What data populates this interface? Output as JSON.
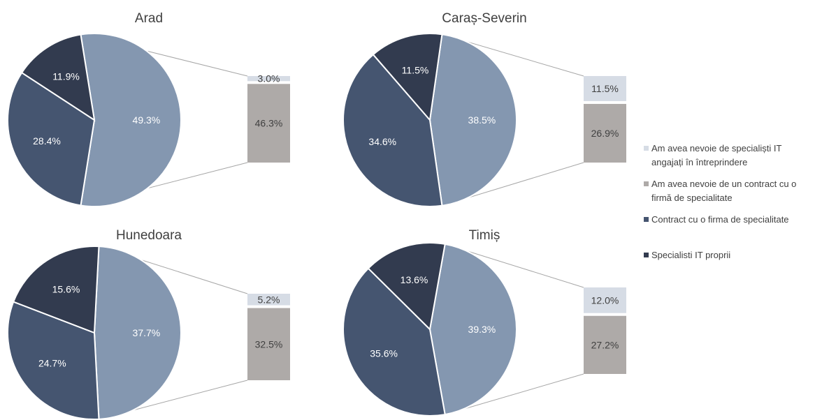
{
  "colors": {
    "specialisti_it_proprii": "#323b4f",
    "contract_firma": "#455570",
    "nevoie_contract": "#aeaaa8",
    "nevoie_specialisti": "#d6dce5",
    "combined_need": "#8497b0",
    "connector": "#a6a6a6",
    "separator": "#ffffff"
  },
  "legend": {
    "items": [
      {
        "key": "nevoie_specialisti",
        "label_lines": [
          "Am avea nevoie de specialiști IT",
          "angajați în întreprindere"
        ]
      },
      {
        "key": "nevoie_contract",
        "label_lines": [
          "Am avea nevoie de un contract cu o",
          "firmă de specialitate"
        ]
      },
      {
        "key": "contract_firma",
        "label_lines": [
          "Contract cu o firma de specialitate"
        ]
      },
      {
        "key": "specialisti_it_proprii",
        "label_lines": [
          "Specialisti IT proprii"
        ]
      }
    ]
  },
  "chart_data": [
    {
      "type": "pie",
      "subtype": "pie-of-pie bar",
      "title": "Arad",
      "pie_slices": [
        {
          "label": "49.3%",
          "value": 49.3,
          "key": "combined_need"
        },
        {
          "label": "28.4%",
          "value": 28.4,
          "key": "contract_firma"
        },
        {
          "label": "11.9%",
          "value": 11.9,
          "key": "specialisti_it_proprii"
        }
      ],
      "bar_segments": [
        {
          "label": "3.0%",
          "value": 3.0,
          "key": "nevoie_specialisti"
        },
        {
          "label": "46.3%",
          "value": 46.3,
          "key": "nevoie_contract"
        }
      ]
    },
    {
      "type": "pie",
      "subtype": "pie-of-pie bar",
      "title": "Caraș-Severin",
      "pie_slices": [
        {
          "label": "38.5%",
          "value": 38.5,
          "key": "combined_need"
        },
        {
          "label": "34.6%",
          "value": 34.6,
          "key": "contract_firma"
        },
        {
          "label": "11.5%",
          "value": 11.5,
          "key": "specialisti_it_proprii"
        }
      ],
      "bar_segments": [
        {
          "label": "11.5%",
          "value": 11.5,
          "key": "nevoie_specialisti"
        },
        {
          "label": "26.9%",
          "value": 26.9,
          "key": "nevoie_contract"
        }
      ]
    },
    {
      "type": "pie",
      "subtype": "pie-of-pie bar",
      "title": "Hunedoara",
      "pie_slices": [
        {
          "label": "37.7%",
          "value": 37.7,
          "key": "combined_need"
        },
        {
          "label": "24.7%",
          "value": 24.7,
          "key": "contract_firma"
        },
        {
          "label": "15.6%",
          "value": 15.6,
          "key": "specialisti_it_proprii"
        }
      ],
      "bar_segments": [
        {
          "label": "5.2%",
          "value": 5.2,
          "key": "nevoie_specialisti"
        },
        {
          "label": "32.5%",
          "value": 32.5,
          "key": "nevoie_contract"
        }
      ]
    },
    {
      "type": "pie",
      "subtype": "pie-of-pie bar",
      "title": "Timiș",
      "pie_slices": [
        {
          "label": "39.3%",
          "value": 39.3,
          "key": "combined_need"
        },
        {
          "label": "35.6%",
          "value": 35.6,
          "key": "contract_firma"
        },
        {
          "label": "13.6%",
          "value": 13.6,
          "key": "specialisti_it_proprii"
        }
      ],
      "bar_segments": [
        {
          "label": "12.0%",
          "value": 12.0,
          "key": "nevoie_specialisti"
        },
        {
          "label": "27.2%",
          "value": 27.2,
          "key": "nevoie_contract"
        }
      ]
    }
  ]
}
